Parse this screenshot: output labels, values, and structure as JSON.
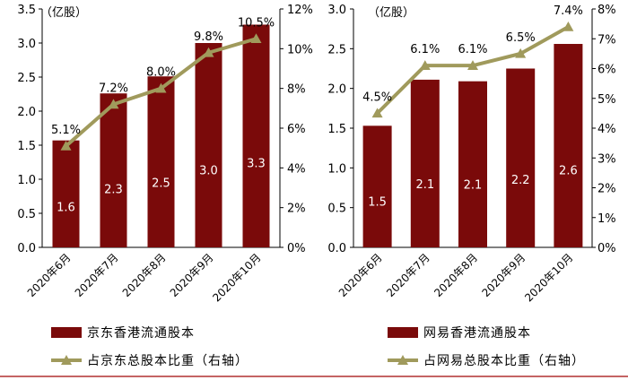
{
  "colors": {
    "bar": "#7a0a0a",
    "line": "#a09a5c",
    "bottom_rule": "#b03030"
  },
  "chart_data": [
    {
      "type": "bar",
      "unit_label": "（亿股）",
      "categories": [
        "2020年6月",
        "2020年7月",
        "2020年8月",
        "2020年9月",
        "2020年10月"
      ],
      "y_left": {
        "min": 0,
        "max": 3.5,
        "ticks": [
          "0.0",
          "0.5",
          "1.0",
          "1.5",
          "2.0",
          "2.5",
          "3.0",
          "3.5"
        ]
      },
      "y_right": {
        "min": 0,
        "max": 12,
        "ticks": [
          "0%",
          "2%",
          "4%",
          "6%",
          "8%",
          "10%",
          "12%"
        ]
      },
      "series": [
        {
          "name": "京东香港流通股本",
          "kind": "bar",
          "axis": "left",
          "values": [
            1.57,
            2.26,
            2.51,
            3.0,
            3.27
          ],
          "labels": [
            "1.6",
            "2.3",
            "2.5",
            "3.0",
            "3.3"
          ]
        },
        {
          "name": "占京东总股本比重（右轴）",
          "kind": "line",
          "axis": "right",
          "values": [
            5.1,
            7.2,
            8.0,
            9.8,
            10.5
          ],
          "labels": [
            "5.1%",
            "7.2%",
            "8.0%",
            "9.8%",
            "10.5%"
          ]
        }
      ]
    },
    {
      "type": "bar",
      "unit_label": "（亿股）",
      "categories": [
        "2020年6月",
        "2020年7月",
        "2020年8月",
        "2020年9月",
        "2020年10月"
      ],
      "y_left": {
        "min": 0,
        "max": 3.0,
        "ticks": [
          "0.0",
          "0.5",
          "1.0",
          "1.5",
          "2.0",
          "2.5",
          "3.0"
        ]
      },
      "y_right": {
        "min": 0,
        "max": 8,
        "ticks": [
          "0%",
          "1%",
          "2%",
          "3%",
          "4%",
          "5%",
          "6%",
          "7%",
          "8%"
        ]
      },
      "series": [
        {
          "name": "网易香港流通股本",
          "kind": "bar",
          "axis": "left",
          "values": [
            1.53,
            2.11,
            2.09,
            2.25,
            2.56
          ],
          "labels": [
            "1.5",
            "2.1",
            "2.1",
            "2.2",
            "2.6"
          ]
        },
        {
          "name": "占网易总股本比重（右轴）",
          "kind": "line",
          "axis": "right",
          "values": [
            4.5,
            6.1,
            6.1,
            6.5,
            7.4
          ],
          "labels": [
            "4.5%",
            "6.1%",
            "6.1%",
            "6.5%",
            "7.4%"
          ]
        }
      ]
    }
  ]
}
